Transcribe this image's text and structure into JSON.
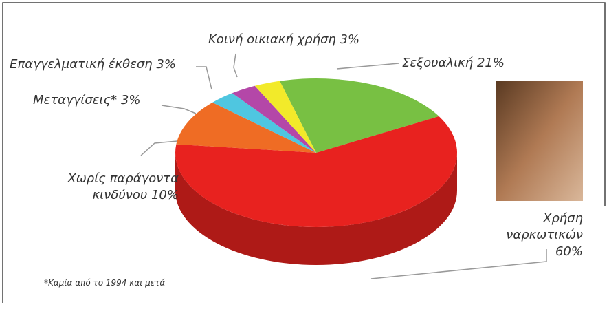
{
  "chart_data": {
    "type": "pie",
    "categories": [
      "Σεξουαλική",
      "Χρήση ναρκωτικών",
      "Χωρίς παράγοντα κινδύνου",
      "Μεταγγίσεις*",
      "Επαγγελματική έκθεση",
      "Κοινή οικιακή χρήση"
    ],
    "values": [
      21,
      60,
      10,
      3,
      3,
      3
    ],
    "value_labels": [
      "21%",
      "60%",
      "10%",
      "3%",
      "3%",
      "3%"
    ],
    "colors": [
      "#78c043",
      "#e8221f",
      "#ef6c24",
      "#4fc6e0",
      "#b447a8",
      "#f2ea2a"
    ],
    "note": "*Καμία από το 1994 και μετά"
  }
}
